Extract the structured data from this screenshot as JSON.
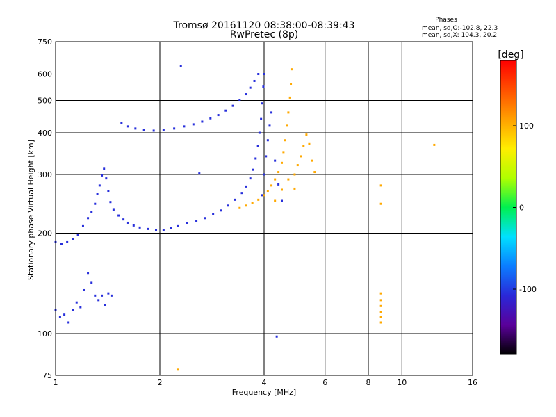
{
  "colors": {
    "background": "#ffffff",
    "axes": "#000000",
    "grid": "#000000",
    "o_mode": "#2b1fc8",
    "x_mode": "#ffa200"
  },
  "chart_data": {
    "type": "scatter",
    "title": "Tromsø 20161120 08:38:00-08:39:43",
    "subtitle": "RwPretec (8p)",
    "xlabel": "Frequency [MHz]",
    "ylabel": "Stationary phase Virtual Height [km]",
    "x_scale": "log",
    "y_scale": "log",
    "xlim": [
      1,
      16
    ],
    "ylim": [
      75,
      750
    ],
    "x_ticks": [
      1,
      2,
      4,
      6,
      8,
      10,
      16
    ],
    "x_tick_labels": [
      "1",
      "2",
      "4",
      "6",
      "8",
      "10",
      "16"
    ],
    "y_ticks": [
      75,
      100,
      200,
      300,
      400,
      500,
      600,
      750
    ],
    "y_tick_labels": [
      "75",
      "100",
      "200",
      "300",
      "400",
      "500",
      "600",
      "750"
    ],
    "grid": true,
    "legend": {
      "position": "top-right",
      "title": "Phases",
      "lines": [
        "mean, sd,O:-102.8, 22.3",
        "mean, sd,X: 104.3, 20.2"
      ]
    },
    "colorbar": {
      "label": "[deg]",
      "ticks": [
        100,
        0,
        -100
      ],
      "tick_labels": [
        "100",
        "0",
        "-100"
      ],
      "range": [
        -180,
        180
      ],
      "colors": [
        "#000000",
        "#5a009a",
        "#2a28d8",
        "#0b7dff",
        "#00e0ff",
        "#00f050",
        "#b0ff00",
        "#ffee00",
        "#ffa000",
        "#ff5000",
        "#ff0000"
      ]
    },
    "series": [
      {
        "mode": "O",
        "phase_deg": -105,
        "points": [
          [
            1.0,
            118
          ],
          [
            1.03,
            112
          ],
          [
            1.06,
            114
          ],
          [
            1.09,
            108
          ],
          [
            1.12,
            118
          ],
          [
            1.15,
            124
          ],
          [
            1.18,
            120
          ],
          [
            1.21,
            135
          ],
          [
            1.24,
            152
          ],
          [
            1.27,
            142
          ],
          [
            1.3,
            130
          ],
          [
            1.33,
            126
          ],
          [
            1.36,
            130
          ],
          [
            1.39,
            122
          ],
          [
            1.42,
            132
          ],
          [
            1.45,
            130
          ],
          [
            1.0,
            188
          ],
          [
            1.04,
            186
          ],
          [
            1.08,
            188
          ],
          [
            1.12,
            192
          ],
          [
            1.16,
            198
          ],
          [
            1.2,
            210
          ],
          [
            1.24,
            222
          ],
          [
            1.27,
            232
          ],
          [
            1.3,
            245
          ],
          [
            1.32,
            262
          ],
          [
            1.34,
            278
          ],
          [
            1.36,
            298
          ],
          [
            1.38,
            312
          ],
          [
            1.4,
            292
          ],
          [
            1.42,
            268
          ],
          [
            1.44,
            248
          ],
          [
            1.47,
            235
          ],
          [
            1.52,
            226
          ],
          [
            1.57,
            220
          ],
          [
            1.62,
            215
          ],
          [
            1.68,
            211
          ],
          [
            1.75,
            208
          ],
          [
            1.85,
            206
          ],
          [
            1.95,
            204
          ],
          [
            2.05,
            204
          ],
          [
            2.15,
            207
          ],
          [
            2.25,
            210
          ],
          [
            2.4,
            214
          ],
          [
            2.55,
            218
          ],
          [
            2.7,
            222
          ],
          [
            2.85,
            228
          ],
          [
            3.0,
            234
          ],
          [
            3.15,
            242
          ],
          [
            3.3,
            252
          ],
          [
            3.45,
            264
          ],
          [
            3.55,
            276
          ],
          [
            3.65,
            292
          ],
          [
            3.72,
            310
          ],
          [
            3.78,
            335
          ],
          [
            3.84,
            365
          ],
          [
            3.88,
            400
          ],
          [
            3.92,
            440
          ],
          [
            3.95,
            490
          ],
          [
            3.98,
            550
          ],
          [
            4.0,
            600
          ],
          [
            1.55,
            428
          ],
          [
            1.62,
            418
          ],
          [
            1.7,
            412
          ],
          [
            1.8,
            408
          ],
          [
            1.92,
            406
          ],
          [
            2.05,
            408
          ],
          [
            2.2,
            412
          ],
          [
            2.35,
            418
          ],
          [
            2.5,
            424
          ],
          [
            2.65,
            432
          ],
          [
            2.8,
            442
          ],
          [
            2.95,
            452
          ],
          [
            3.1,
            466
          ],
          [
            3.25,
            482
          ],
          [
            3.4,
            500
          ],
          [
            3.55,
            522
          ],
          [
            3.65,
            546
          ],
          [
            3.75,
            572
          ],
          [
            3.85,
            600
          ],
          [
            3.95,
            260
          ],
          [
            4.0,
            300
          ],
          [
            4.05,
            340
          ],
          [
            4.1,
            380
          ],
          [
            4.15,
            420
          ],
          [
            4.2,
            460
          ],
          [
            4.3,
            330
          ],
          [
            4.4,
            280
          ],
          [
            4.5,
            250
          ],
          [
            2.3,
            635
          ],
          [
            2.6,
            302
          ],
          [
            4.35,
            98
          ]
        ]
      },
      {
        "mode": "X",
        "phase_deg": 104,
        "points": [
          [
            3.4,
            238
          ],
          [
            3.55,
            242
          ],
          [
            3.7,
            246
          ],
          [
            3.85,
            252
          ],
          [
            4.0,
            260
          ],
          [
            4.1,
            268
          ],
          [
            4.2,
            278
          ],
          [
            4.3,
            290
          ],
          [
            4.4,
            305
          ],
          [
            4.5,
            325
          ],
          [
            4.55,
            350
          ],
          [
            4.6,
            380
          ],
          [
            4.65,
            420
          ],
          [
            4.7,
            460
          ],
          [
            4.75,
            510
          ],
          [
            4.78,
            560
          ],
          [
            4.8,
            620
          ],
          [
            4.9,
            300
          ],
          [
            5.0,
            320
          ],
          [
            5.1,
            340
          ],
          [
            5.2,
            365
          ],
          [
            5.3,
            395
          ],
          [
            5.4,
            370
          ],
          [
            5.5,
            330
          ],
          [
            5.6,
            305
          ],
          [
            4.3,
            250
          ],
          [
            4.5,
            270
          ],
          [
            4.7,
            290
          ],
          [
            4.9,
            272
          ],
          [
            8.7,
            132
          ],
          [
            8.7,
            126
          ],
          [
            8.7,
            121
          ],
          [
            8.7,
            116
          ],
          [
            8.7,
            112
          ],
          [
            8.7,
            108
          ],
          [
            8.7,
            278
          ],
          [
            8.7,
            245
          ],
          [
            12.4,
            368
          ],
          [
            2.25,
            78
          ]
        ]
      }
    ]
  }
}
